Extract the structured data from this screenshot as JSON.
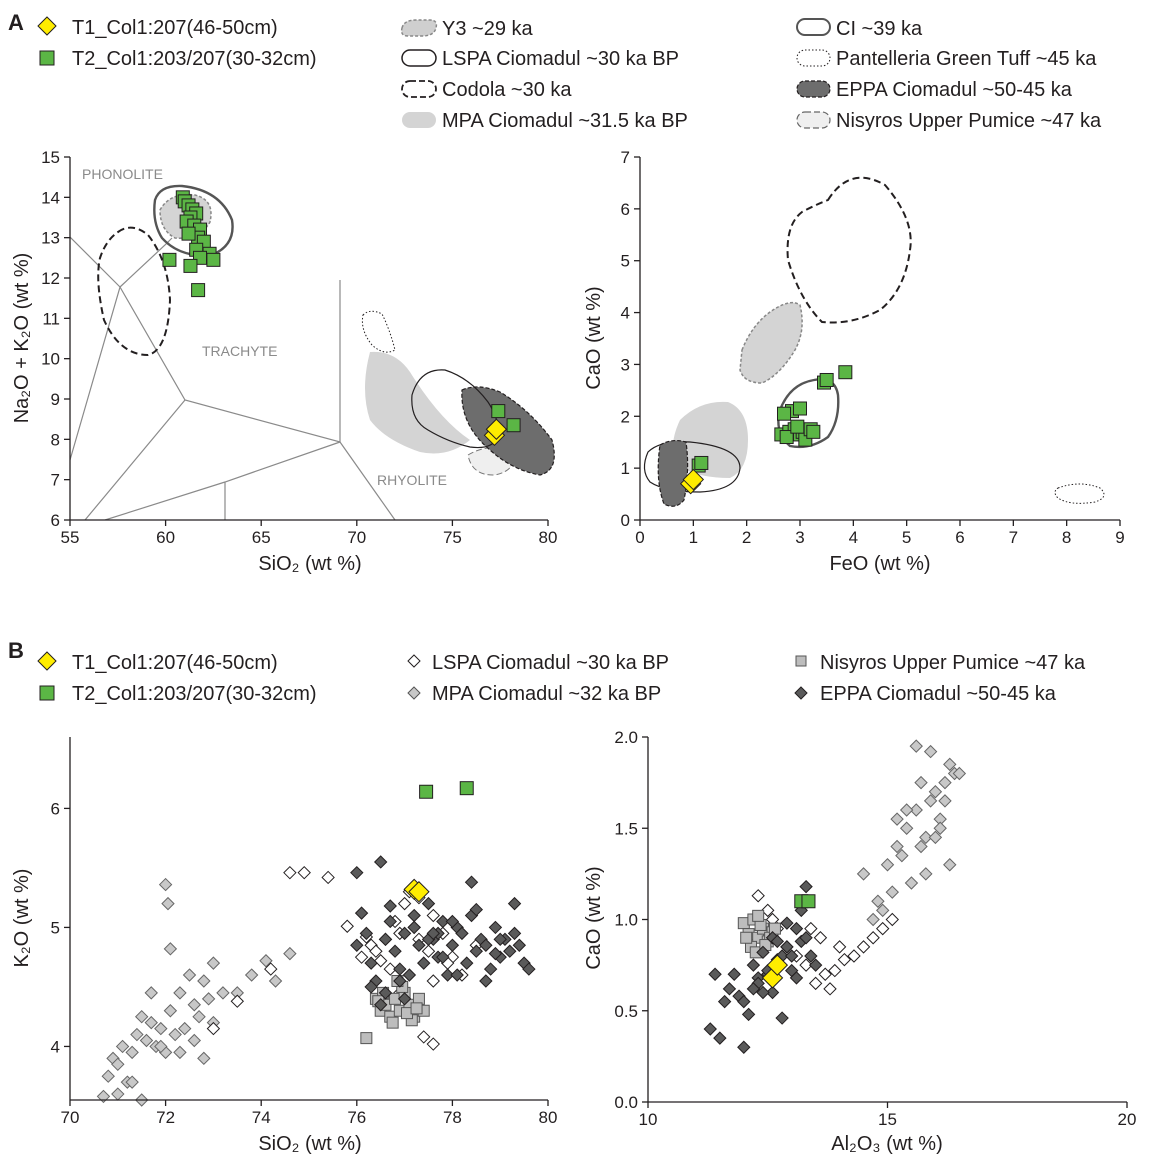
{
  "panels": [
    {
      "label": "A",
      "legend": [
        {
          "label": "T1_Col1:207(46-50cm)",
          "kind": "diamond",
          "fill": "#ffed00"
        },
        {
          "label": "T2_Col1:203/207(30-32cm)",
          "kind": "square",
          "fill": "#5bb645"
        },
        {
          "label": "Y3 ~29 ka",
          "kind": "blob",
          "style": "y3"
        },
        {
          "label": "LSPA Ciomadul ~30 ka BP",
          "kind": "blob",
          "style": "lspa"
        },
        {
          "label": "Codola ~30 ka",
          "kind": "blob",
          "style": "codola"
        },
        {
          "label": "MPA Ciomadul ~31.5 ka BP",
          "kind": "blob",
          "style": "mpa"
        },
        {
          "label": "CI ~39 ka",
          "kind": "blob",
          "style": "ci"
        },
        {
          "label": "Pantelleria Green Tuff ~45 ka",
          "kind": "blob",
          "style": "pgt"
        },
        {
          "label": "EPPA Ciomadul ~50-45 ka",
          "kind": "blob",
          "style": "eppa"
        },
        {
          "label": "Nisyros Upper Pumice ~47 ka",
          "kind": "blob",
          "style": "nup"
        }
      ]
    },
    {
      "label": "B",
      "legend": [
        {
          "label": "T1_Col1:207(46-50cm)",
          "kind": "diamond",
          "fill": "#ffed00"
        },
        {
          "label": "T2_Col1:203/207(30-32cm)",
          "kind": "square",
          "fill": "#5bb645"
        },
        {
          "label": "LSPA Ciomadul ~30 ka BP",
          "kind": "diamond",
          "fill": "#ffffff"
        },
        {
          "label": "MPA Ciomadul ~32 ka BP",
          "kind": "diamond",
          "fill": "#c8c8c8"
        },
        {
          "label": "Nisyros Upper Pumice ~47 ka",
          "kind": "square",
          "fill": "#bdbdbd"
        },
        {
          "label": "EPPA Ciomadul ~50-45 ka",
          "kind": "diamond",
          "fill": "#5a5a5a"
        }
      ]
    }
  ],
  "colors": {
    "t1": "#ffed00",
    "t2": "#5bb645",
    "lspa": "#ffffff",
    "mpa": "#c8c8c8",
    "nup": "#bdbdbd",
    "eppa": "#5a5a5a",
    "field": "#d4d4d4",
    "eppa_field": "#6d6d6d",
    "grid": "#8a8a8a"
  },
  "chart_data": [
    {
      "type": "scatter",
      "panel": "A",
      "xlabel": "SiO₂ (wt %)",
      "ylabel": "Na₂O + K₂O (wt %)",
      "xlim": [
        55,
        80
      ],
      "ylim": [
        6,
        15
      ],
      "xticks": [
        55,
        60,
        65,
        70,
        75,
        80
      ],
      "yticks": [
        6,
        7,
        8,
        9,
        10,
        11,
        12,
        13,
        14,
        15
      ],
      "field_labels": [
        "PHONOLITE",
        "TRACHYTE",
        "RHYOLITE"
      ],
      "series": [
        {
          "name": "T1_Col1:207(46-50cm)",
          "marker": "diamond",
          "x": [
            77.2,
            77.3
          ],
          "y": [
            8.1,
            8.25
          ]
        },
        {
          "name": "T2_Col1:203/207(30-32cm)",
          "marker": "square",
          "x": [
            60.9,
            61.0,
            61.2,
            61.4,
            61.6,
            61.3,
            61.1,
            61.5,
            61.8,
            61.7,
            62.0,
            61.2,
            61.6,
            62.3,
            62.5,
            61.8,
            60.2,
            61.3,
            61.7,
            77.4,
            78.2
          ],
          "y": [
            14.0,
            13.9,
            13.8,
            13.7,
            13.6,
            13.5,
            13.4,
            13.3,
            13.2,
            13.0,
            12.9,
            13.1,
            12.7,
            12.6,
            12.45,
            12.5,
            12.45,
            12.3,
            11.7,
            8.7,
            8.35
          ]
        }
      ]
    },
    {
      "type": "scatter",
      "panel": "A",
      "xlabel": "FeO (wt %)",
      "ylabel": "CaO (wt %)",
      "xlim": [
        0,
        9
      ],
      "ylim": [
        0,
        7
      ],
      "xticks": [
        0,
        1,
        2,
        3,
        4,
        5,
        6,
        7,
        8,
        9
      ],
      "yticks": [
        0,
        1,
        2,
        3,
        4,
        5,
        6,
        7
      ],
      "series": [
        {
          "name": "T1_Col1:207(46-50cm)",
          "marker": "diamond",
          "x": [
            0.95,
            1.0
          ],
          "y": [
            0.7,
            0.78
          ]
        },
        {
          "name": "T2_Col1:203/207(30-32cm)",
          "marker": "square",
          "x": [
            1.1,
            1.15,
            2.65,
            2.8,
            2.9,
            2.75,
            3.0,
            3.05,
            3.1,
            2.95,
            2.85,
            3.2,
            3.25,
            2.7,
            3.0,
            3.45,
            3.5,
            3.85
          ],
          "y": [
            1.05,
            1.1,
            1.65,
            1.7,
            1.75,
            1.6,
            1.65,
            1.7,
            1.55,
            1.8,
            2.1,
            1.75,
            1.7,
            2.05,
            2.15,
            2.65,
            2.7,
            2.85
          ]
        }
      ]
    },
    {
      "type": "scatter",
      "panel": "B",
      "xlabel": "SiO₂ (wt %)",
      "ylabel": "K₂O (wt %)",
      "xlim": [
        70,
        80
      ],
      "ylim": [
        3.55,
        6.6
      ],
      "xticks": [
        70,
        72,
        74,
        76,
        78,
        80
      ],
      "yticks": [
        4,
        5,
        6
      ],
      "series": [
        {
          "name": "T1_Col1:207(46-50cm)",
          "marker": "diamond",
          "x": [
            77.2,
            77.3
          ],
          "y": [
            5.32,
            5.3
          ]
        },
        {
          "name": "T2_Col1:203/207(30-32cm)",
          "marker": "square",
          "x": [
            77.45,
            78.3
          ],
          "y": [
            6.14,
            6.17
          ]
        },
        {
          "name": "LSPA Ciomadul ~30 ka BP",
          "marker": "diamond",
          "x": [
            74.6,
            74.9,
            75.4,
            75.8,
            76.2,
            76.3,
            76.5,
            76.6,
            76.8,
            76.9,
            77.0,
            77.1,
            77.2,
            77.3,
            77.5,
            77.6,
            77.8,
            78.0,
            78.2,
            77.4,
            77.6,
            76.4,
            76.7,
            77.9,
            78.5,
            73.5,
            74.2,
            73.0,
            77.3,
            77.6,
            76.1,
            76.9
          ],
          "y": [
            5.46,
            5.46,
            5.42,
            5.01,
            4.92,
            4.85,
            4.72,
            4.9,
            5.05,
            4.95,
            5.2,
            5.3,
            5.0,
            4.9,
            4.8,
            5.1,
            4.95,
            4.75,
            4.6,
            4.08,
            4.02,
            4.8,
            4.65,
            4.7,
            4.85,
            4.38,
            4.65,
            4.15,
            5.25,
            4.55,
            4.75,
            4.45
          ]
        },
        {
          "name": "MPA Ciomadul ~32 ka BP",
          "marker": "diamond",
          "x": [
            70.7,
            70.8,
            70.9,
            71.0,
            71.1,
            71.2,
            71.3,
            71.4,
            71.5,
            71.6,
            71.7,
            71.8,
            71.9,
            72.0,
            72.1,
            72.2,
            72.3,
            72.4,
            72.5,
            72.6,
            72.7,
            72.8,
            72.9,
            73.0,
            73.2,
            73.5,
            73.8,
            74.1,
            74.3,
            74.6,
            72.0,
            72.05,
            72.1,
            71.0,
            71.3,
            71.5,
            72.3,
            72.8,
            71.9,
            71.7,
            73.0,
            72.6
          ],
          "y": [
            3.58,
            3.75,
            3.9,
            3.85,
            4.0,
            3.7,
            3.95,
            4.1,
            4.25,
            4.05,
            4.2,
            4.0,
            4.15,
            3.95,
            4.3,
            4.1,
            4.45,
            4.15,
            4.6,
            4.05,
            4.25,
            4.55,
            4.4,
            4.7,
            4.45,
            4.45,
            4.6,
            4.72,
            4.55,
            4.78,
            5.36,
            5.2,
            4.82,
            3.6,
            3.7,
            3.55,
            3.95,
            3.9,
            4.0,
            4.45,
            4.2,
            4.35
          ]
        },
        {
          "name": "Nisyros Upper Pumice ~47 ka",
          "marker": "square",
          "x": [
            76.2,
            76.4,
            76.5,
            76.6,
            76.7,
            76.8,
            76.9,
            77.0,
            77.1,
            77.2,
            77.3,
            77.4,
            76.55,
            76.75,
            76.95,
            77.15,
            76.85,
            77.05,
            76.45,
            77.25
          ],
          "y": [
            4.07,
            4.4,
            4.3,
            4.35,
            4.25,
            4.4,
            4.3,
            4.45,
            4.35,
            4.25,
            4.4,
            4.3,
            4.45,
            4.2,
            4.5,
            4.22,
            4.55,
            4.28,
            4.38,
            4.32
          ]
        },
        {
          "name": "EPPA Ciomadul ~50-45 ka",
          "marker": "diamond",
          "x": [
            76.0,
            76.1,
            76.2,
            76.3,
            76.4,
            76.5,
            76.6,
            76.7,
            76.8,
            76.9,
            77.0,
            77.1,
            77.2,
            77.3,
            77.4,
            77.5,
            77.6,
            77.7,
            77.8,
            77.9,
            78.0,
            78.1,
            78.2,
            78.3,
            78.4,
            78.5,
            78.6,
            78.7,
            78.8,
            78.9,
            79.0,
            79.1,
            79.2,
            79.3,
            79.4,
            79.5,
            79.6,
            76.3,
            76.6,
            76.9,
            77.2,
            77.5,
            77.8,
            78.1,
            78.4,
            78.7,
            79.0,
            76.0,
            76.7,
            77.7,
            78.5,
            79.3,
            76.5,
            77.0,
            77.6,
            78.0,
            78.9
          ],
          "y": [
            5.46,
            5.12,
            4.95,
            4.7,
            4.55,
            5.55,
            4.9,
            5.05,
            4.8,
            4.65,
            4.95,
            4.6,
            5.1,
            4.85,
            4.7,
            5.2,
            4.9,
            4.75,
            5.05,
            4.6,
            4.85,
            5.0,
            4.95,
            4.7,
            5.38,
            4.8,
            4.9,
            4.85,
            4.65,
            5.0,
            4.75,
            4.9,
            4.8,
            4.95,
            4.85,
            4.7,
            4.65,
            4.5,
            4.45,
            4.55,
            5.0,
            4.9,
            4.75,
            4.6,
            5.1,
            4.55,
            4.9,
            4.85,
            5.18,
            4.95,
            5.15,
            5.2,
            4.35,
            4.4,
            4.95,
            5.05,
            4.78
          ]
        }
      ]
    },
    {
      "type": "scatter",
      "panel": "B",
      "xlabel": "Al₂O₃ (wt %)",
      "ylabel": "CaO (wt %)",
      "xlim": [
        10,
        20
      ],
      "ylim": [
        0,
        2
      ],
      "xticks": [
        10,
        15,
        20
      ],
      "yticks": [
        0.0,
        0.5,
        1.0,
        1.5,
        2.0
      ],
      "series": [
        {
          "name": "T1_Col1:207(46-50cm)",
          "marker": "diamond",
          "x": [
            12.6,
            12.7
          ],
          "y": [
            0.68,
            0.75
          ]
        },
        {
          "name": "T2_Col1:203/207(30-32cm)",
          "marker": "square",
          "x": [
            13.2,
            13.35
          ],
          "y": [
            1.1,
            1.1
          ]
        },
        {
          "name": "LSPA Ciomadul ~30 ka BP",
          "marker": "diamond",
          "x": [
            12.3,
            12.5,
            12.7,
            12.9,
            13.1,
            13.3,
            13.5,
            13.7,
            13.9,
            14.1,
            14.3,
            14.5,
            14.7,
            14.9,
            15.1,
            13.6,
            13.8,
            14.0,
            13.4,
            12.4,
            12.6
          ],
          "y": [
            1.13,
            1.05,
            0.95,
            0.85,
            0.8,
            0.75,
            0.65,
            0.7,
            0.72,
            0.78,
            0.8,
            0.85,
            0.9,
            0.95,
            1.0,
            0.9,
            0.62,
            0.85,
            0.95,
            0.9,
            1.0
          ]
        },
        {
          "name": "MPA Ciomadul ~32 ka BP",
          "marker": "diamond",
          "x": [
            14.5,
            14.8,
            15.0,
            15.2,
            15.4,
            15.6,
            15.8,
            16.0,
            16.2,
            16.4,
            15.3,
            15.5,
            15.7,
            15.9,
            16.1,
            16.3,
            15.1,
            14.9,
            15.6,
            15.9,
            16.5,
            15.8,
            16.0,
            16.2,
            14.7,
            15.4,
            15.7,
            16.3,
            16.1,
            15.2
          ],
          "y": [
            1.25,
            1.1,
            1.3,
            1.55,
            1.5,
            1.6,
            1.45,
            1.7,
            1.75,
            1.8,
            1.35,
            1.2,
            1.4,
            1.65,
            1.55,
            1.85,
            1.15,
            1.05,
            1.95,
            1.92,
            1.8,
            1.25,
            1.45,
            1.65,
            1.0,
            1.6,
            1.75,
            1.3,
            1.5,
            1.4
          ]
        },
        {
          "name": "Nisyros Upper Pumice ~47 ka",
          "marker": "square",
          "x": [
            12.0,
            12.1,
            12.2,
            12.3,
            12.4,
            12.5,
            12.6,
            12.15,
            12.35,
            12.55,
            12.25,
            12.45,
            12.05,
            12.65,
            12.3
          ],
          "y": [
            0.98,
            0.92,
            1.0,
            0.9,
            0.95,
            0.88,
            0.93,
            0.85,
            0.97,
            0.9,
            0.82,
            0.86,
            0.9,
            0.95,
            1.02
          ]
        },
        {
          "name": "EPPA Ciomadul ~50-45 ka",
          "marker": "diamond",
          "x": [
            11.3,
            11.5,
            11.7,
            11.9,
            12.0,
            12.1,
            12.2,
            12.3,
            12.4,
            12.5,
            12.6,
            12.7,
            12.8,
            12.9,
            13.0,
            13.1,
            13.2,
            13.3,
            13.4,
            13.5,
            11.8,
            12.0,
            12.3,
            12.6,
            12.9,
            13.2,
            11.6,
            12.2,
            12.8,
            13.3,
            12.5,
            13.0,
            12.7,
            11.4,
            12.4,
            13.1
          ],
          "y": [
            0.4,
            0.35,
            0.62,
            0.58,
            0.3,
            0.48,
            0.75,
            0.68,
            0.82,
            0.7,
            0.9,
            0.78,
            0.46,
            0.85,
            0.72,
            0.95,
            0.88,
            1.18,
            0.8,
            0.75,
            0.7,
            0.55,
            0.65,
            0.6,
            0.98,
            1.05,
            0.55,
            0.62,
            0.8,
            0.9,
            0.72,
            0.8,
            0.88,
            0.7,
            0.6,
            0.68
          ]
        }
      ]
    }
  ]
}
